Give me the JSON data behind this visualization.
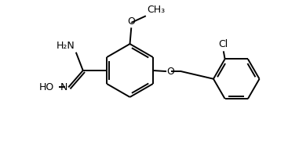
{
  "bg_color": "#ffffff",
  "line_color": "#000000",
  "line_width": 1.4,
  "font_size": 9,
  "fig_width": 3.81,
  "fig_height": 1.8,
  "xlim": [
    0,
    10
  ],
  "ylim": [
    0,
    5
  ]
}
